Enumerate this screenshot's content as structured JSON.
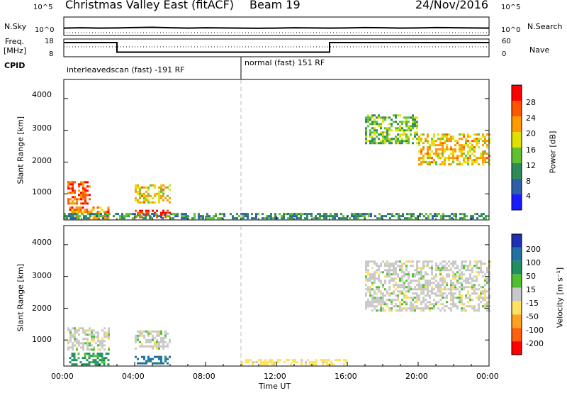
{
  "header": {
    "station": "Christmas Valley East (fitACF)",
    "beam": "Beam 19",
    "date": "24/Nov/2016"
  },
  "left_labels": {
    "nsky": "N.Sky",
    "freq": "Freq.",
    "mhz": "[MHz]",
    "cpid": "CPID"
  },
  "right_labels": {
    "nsearch": "N.Search",
    "nave": "Nave"
  },
  "cpid_segments": [
    {
      "label": "interleavedscan (fast) -191 RF",
      "start_hour": 0,
      "end_hour": 10
    },
    {
      "label": "normal (fast) 151 RF",
      "start_hour": 10,
      "end_hour": 24
    }
  ],
  "chart_data": [
    {
      "type": "line",
      "panel": "noise",
      "left_axis": {
        "label": "N.Sky",
        "ticks": [
          "10^5",
          "10^0"
        ]
      },
      "right_axis": {
        "label": "N.Search",
        "ticks": [
          "10^5",
          "10^0"
        ]
      },
      "x": [
        0,
        1,
        2,
        3,
        4,
        5,
        6,
        7,
        8,
        9,
        10,
        11,
        12,
        13,
        14,
        15,
        16,
        17,
        18,
        19,
        20,
        21,
        22,
        23,
        24
      ],
      "series": [
        {
          "name": "N.Sky",
          "values": [
            0.4,
            0.42,
            0.4,
            0.41,
            0.43,
            0.44,
            0.42,
            0.4,
            0.42,
            0.41,
            0.4,
            0.39,
            0.4,
            0.42,
            0.41,
            0.4,
            0.41,
            0.43,
            0.42,
            0.4,
            0.41,
            0.43,
            0.42,
            0.41,
            0.4
          ]
        }
      ]
    },
    {
      "type": "line",
      "panel": "frequency",
      "left_axis": {
        "label": "Freq. [MHz]",
        "ticks": [
          "18",
          "8"
        ],
        "ylim": [
          8,
          18
        ]
      },
      "right_axis": {
        "label": "Nave",
        "ticks": [
          "60",
          "0"
        ],
        "ylim": [
          0,
          60
        ]
      },
      "x": [
        0,
        3,
        3,
        15,
        15,
        24
      ],
      "series": [
        {
          "name": "Freq.",
          "values": [
            16,
            16,
            10.6,
            10.6,
            16,
            16
          ]
        }
      ]
    },
    {
      "type": "heatmap",
      "panel": "power",
      "xlabel": "",
      "ylabel": "Slant Range [km]",
      "yticks": [
        "1000",
        "2000",
        "3000",
        "4000"
      ],
      "xlim": [
        "00:00",
        "24:00"
      ],
      "colorbar": {
        "label": "Power [dB]",
        "ticks": [
          "4",
          "8",
          "12",
          "16",
          "20",
          "24",
          "28"
        ]
      },
      "echo_regions": [
        {
          "start_hour": 0.2,
          "end_hour": 1.5,
          "range_km_min": 700,
          "range_km_max": 1400,
          "power_db": 26
        },
        {
          "start_hour": 0.3,
          "end_hour": 2.5,
          "range_km_min": 250,
          "range_km_max": 600,
          "power_db": 24
        },
        {
          "start_hour": 4.0,
          "end_hour": 6.0,
          "range_km_min": 700,
          "range_km_max": 1300,
          "power_db": 20
        },
        {
          "start_hour": 4.0,
          "end_hour": 6.0,
          "range_km_min": 250,
          "range_km_max": 500,
          "power_db": 28
        },
        {
          "start_hour": 0,
          "end_hour": 24,
          "range_km_min": 250,
          "range_km_max": 400,
          "power_db": 10
        },
        {
          "start_hour": 17.0,
          "end_hour": 20.0,
          "range_km_min": 2600,
          "range_km_max": 3500,
          "power_db": 14
        },
        {
          "start_hour": 20.0,
          "end_hour": 24.0,
          "range_km_min": 1900,
          "range_km_max": 2900,
          "power_db": 20
        }
      ]
    },
    {
      "type": "heatmap",
      "panel": "velocity",
      "xlabel": "Time UT",
      "ylabel": "Slant Range [km]",
      "xticks": [
        "00:00",
        "04:00",
        "08:00",
        "12:00",
        "16:00",
        "20:00",
        "00:00"
      ],
      "yticks": [
        "1000",
        "2000",
        "3000",
        "4000"
      ],
      "colorbar": {
        "label": "Velocity [m s⁻¹]",
        "ticks": [
          "200",
          "100",
          "50",
          "15",
          "-15",
          "-50",
          "-100",
          "-200"
        ]
      },
      "echo_regions": [
        {
          "start_hour": 0.2,
          "end_hour": 2.5,
          "range_km_min": 700,
          "range_km_max": 1400,
          "velocity_ms": 0
        },
        {
          "start_hour": 0.3,
          "end_hour": 2.5,
          "range_km_min": 250,
          "range_km_max": 600,
          "velocity_ms": 40
        },
        {
          "start_hour": 4.0,
          "end_hour": 6.0,
          "range_km_min": 700,
          "range_km_max": 1300,
          "velocity_ms": 0
        },
        {
          "start_hour": 4.0,
          "end_hour": 6.0,
          "range_km_min": 250,
          "range_km_max": 500,
          "velocity_ms": 90
        },
        {
          "start_hour": 10.0,
          "end_hour": 16.0,
          "range_km_min": 250,
          "range_km_max": 400,
          "velocity_ms": -30
        },
        {
          "start_hour": 17.0,
          "end_hour": 24.0,
          "range_km_min": 1900,
          "range_km_max": 3500,
          "velocity_ms": 0
        }
      ]
    }
  ],
  "power_colors": [
    "#1a1aff",
    "#2d5fa8",
    "#2e8b57",
    "#60c030",
    "#e0e000",
    "#ff9900",
    "#ff5500",
    "#ff0000"
  ],
  "velocity_colors": [
    "#2030b0",
    "#2070a0",
    "#209060",
    "#50c030",
    "#c8c8c8",
    "#ffe060",
    "#ffa020",
    "#ff6010",
    "#ff0000"
  ],
  "xaxis_title": "Time UT"
}
